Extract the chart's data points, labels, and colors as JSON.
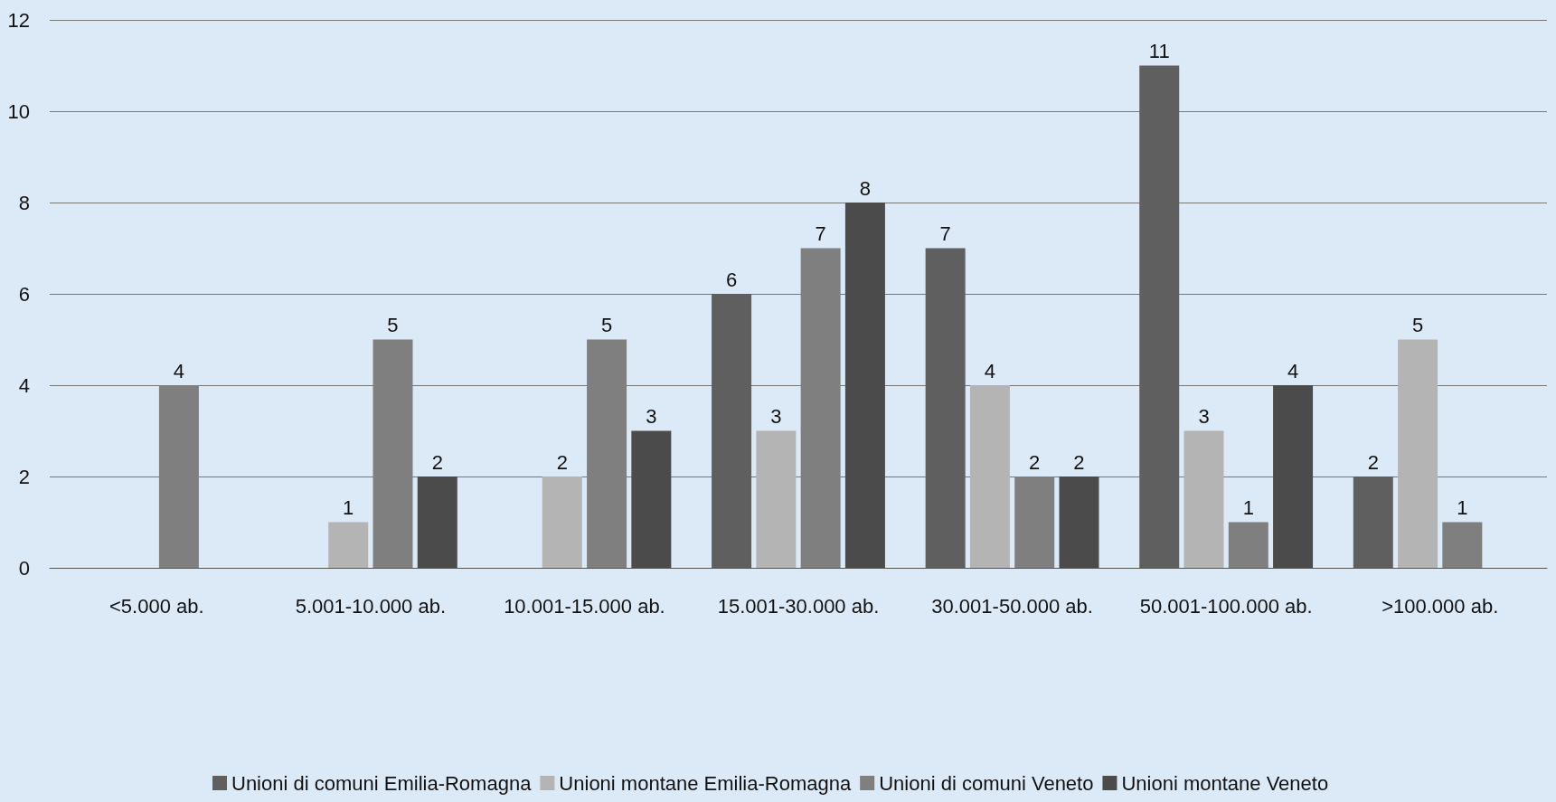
{
  "chart_data": {
    "type": "bar",
    "categories": [
      "<5.000 ab.",
      "5.001-10.000 ab.",
      "10.001-15.000 ab.",
      "15.001-30.000 ab.",
      "30.001-50.000 ab.",
      "50.001-100.000 ab.",
      ">100.000 ab."
    ],
    "series": [
      {
        "name": "Unioni di comuni Emilia-Romagna",
        "color": "#5f5f5f",
        "values": [
          null,
          null,
          null,
          6,
          7,
          11,
          2
        ]
      },
      {
        "name": "Unioni montane Emilia-Romagna",
        "color": "#b4b4b4",
        "values": [
          null,
          1,
          2,
          3,
          4,
          3,
          5
        ]
      },
      {
        "name": "Unioni di comuni Veneto",
        "color": "#7f7f7f",
        "values": [
          4,
          5,
          5,
          7,
          2,
          1,
          1
        ]
      },
      {
        "name": "Unioni montane Veneto",
        "color": "#4b4b4b",
        "values": [
          null,
          2,
          3,
          8,
          2,
          4,
          null
        ]
      }
    ],
    "ylim": [
      0,
      12
    ],
    "yticks": [
      0,
      2,
      4,
      6,
      8,
      10,
      12
    ],
    "grid": "y",
    "legend": "bottom",
    "data_labels": true
  }
}
